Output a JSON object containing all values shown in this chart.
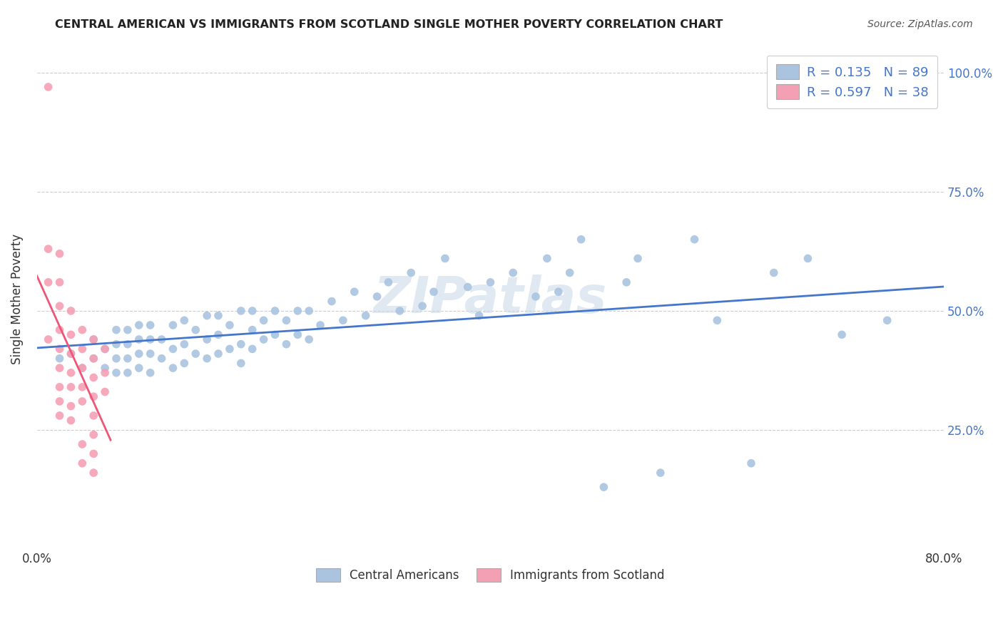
{
  "title": "CENTRAL AMERICAN VS IMMIGRANTS FROM SCOTLAND SINGLE MOTHER POVERTY CORRELATION CHART",
  "source": "Source: ZipAtlas.com",
  "xlabel": "",
  "ylabel": "Single Mother Poverty",
  "xlim": [
    0.0,
    0.8
  ],
  "ylim": [
    0.0,
    1.05
  ],
  "xticks": [
    0.0,
    0.1,
    0.2,
    0.3,
    0.4,
    0.5,
    0.6,
    0.7,
    0.8
  ],
  "xticklabels": [
    "0.0%",
    "",
    "",
    "",
    "",
    "",
    "",
    "",
    "80.0%"
  ],
  "ytick_positions": [
    0.25,
    0.5,
    0.75,
    1.0
  ],
  "ytick_labels": [
    "25.0%",
    "50.0%",
    "75.0%",
    "100.0%"
  ],
  "R_blue": 0.135,
  "N_blue": 89,
  "R_pink": 0.597,
  "N_pink": 38,
  "blue_color": "#aac4e0",
  "pink_color": "#f4a0b4",
  "blue_line_color": "#4477cc",
  "pink_line_color": "#ee5577",
  "legend_label_blue": "Central Americans",
  "legend_label_pink": "Immigrants from Scotland",
  "watermark": "ZIPatlas",
  "blue_scatter_x": [
    0.02,
    0.03,
    0.04,
    0.05,
    0.05,
    0.06,
    0.06,
    0.07,
    0.07,
    0.07,
    0.07,
    0.08,
    0.08,
    0.08,
    0.08,
    0.09,
    0.09,
    0.09,
    0.09,
    0.1,
    0.1,
    0.1,
    0.1,
    0.11,
    0.11,
    0.12,
    0.12,
    0.12,
    0.13,
    0.13,
    0.13,
    0.14,
    0.14,
    0.15,
    0.15,
    0.15,
    0.16,
    0.16,
    0.16,
    0.17,
    0.17,
    0.18,
    0.18,
    0.18,
    0.19,
    0.19,
    0.19,
    0.2,
    0.2,
    0.21,
    0.21,
    0.22,
    0.22,
    0.23,
    0.23,
    0.24,
    0.24,
    0.25,
    0.26,
    0.27,
    0.28,
    0.29,
    0.3,
    0.31,
    0.32,
    0.33,
    0.34,
    0.35,
    0.36,
    0.38,
    0.39,
    0.4,
    0.42,
    0.44,
    0.45,
    0.46,
    0.47,
    0.48,
    0.5,
    0.52,
    0.53,
    0.55,
    0.58,
    0.6,
    0.63,
    0.65,
    0.68,
    0.71,
    0.75
  ],
  "blue_scatter_y": [
    0.4,
    0.41,
    0.38,
    0.4,
    0.44,
    0.38,
    0.42,
    0.37,
    0.4,
    0.43,
    0.46,
    0.37,
    0.4,
    0.43,
    0.46,
    0.38,
    0.41,
    0.44,
    0.47,
    0.37,
    0.41,
    0.44,
    0.47,
    0.4,
    0.44,
    0.38,
    0.42,
    0.47,
    0.39,
    0.43,
    0.48,
    0.41,
    0.46,
    0.4,
    0.44,
    0.49,
    0.41,
    0.45,
    0.49,
    0.42,
    0.47,
    0.39,
    0.43,
    0.5,
    0.42,
    0.46,
    0.5,
    0.44,
    0.48,
    0.45,
    0.5,
    0.43,
    0.48,
    0.45,
    0.5,
    0.44,
    0.5,
    0.47,
    0.52,
    0.48,
    0.54,
    0.49,
    0.53,
    0.56,
    0.5,
    0.58,
    0.51,
    0.54,
    0.61,
    0.55,
    0.49,
    0.56,
    0.58,
    0.53,
    0.61,
    0.54,
    0.58,
    0.65,
    0.13,
    0.56,
    0.61,
    0.16,
    0.65,
    0.48,
    0.18,
    0.58,
    0.61,
    0.45,
    0.48
  ],
  "pink_scatter_x": [
    0.01,
    0.01,
    0.01,
    0.01,
    0.02,
    0.02,
    0.02,
    0.02,
    0.02,
    0.02,
    0.02,
    0.02,
    0.02,
    0.03,
    0.03,
    0.03,
    0.03,
    0.03,
    0.03,
    0.03,
    0.04,
    0.04,
    0.04,
    0.04,
    0.04,
    0.04,
    0.04,
    0.05,
    0.05,
    0.05,
    0.05,
    0.05,
    0.05,
    0.05,
    0.05,
    0.06,
    0.06,
    0.06
  ],
  "pink_scatter_y": [
    0.97,
    0.63,
    0.56,
    0.44,
    0.62,
    0.56,
    0.51,
    0.46,
    0.42,
    0.38,
    0.34,
    0.31,
    0.28,
    0.5,
    0.45,
    0.41,
    0.37,
    0.34,
    0.3,
    0.27,
    0.46,
    0.42,
    0.38,
    0.34,
    0.31,
    0.22,
    0.18,
    0.44,
    0.4,
    0.36,
    0.32,
    0.28,
    0.24,
    0.2,
    0.16,
    0.42,
    0.37,
    0.33
  ]
}
